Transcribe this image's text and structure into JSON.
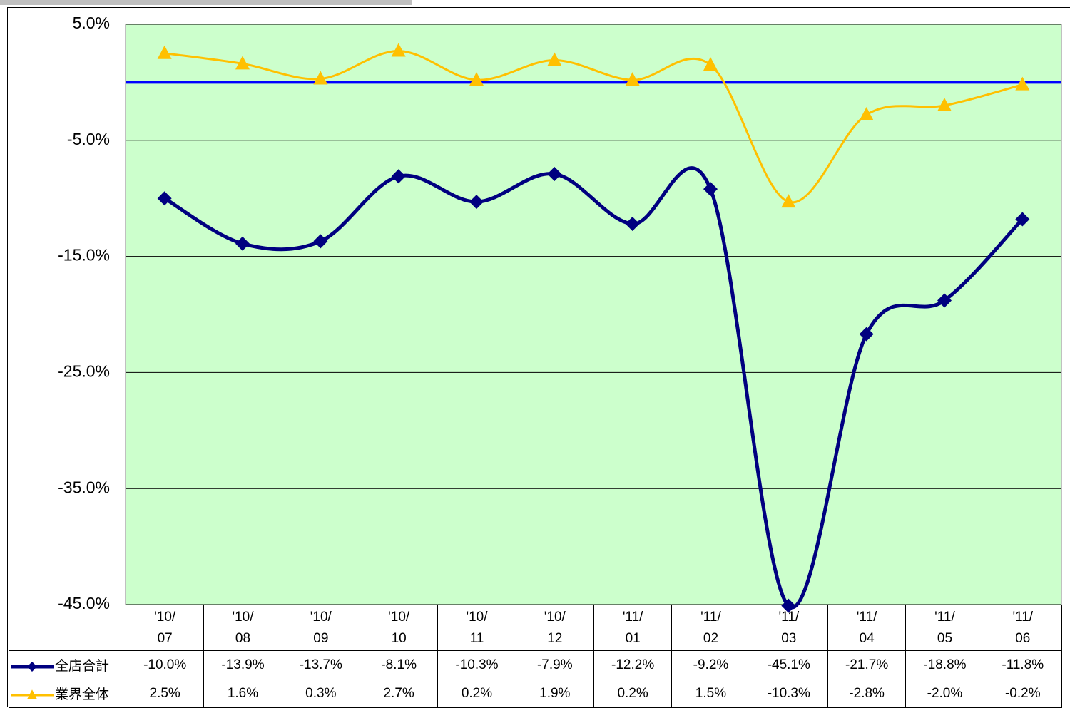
{
  "chart_data": {
    "type": "line",
    "categories": [
      "'10/\n07",
      "'10/\n08",
      "'10/\n09",
      "'10/\n10",
      "'10/\n11",
      "'10/\n12",
      "'11/\n01",
      "'11/\n02",
      "'11/\n03",
      "'11/\n04",
      "'11/\n05",
      "'11/\n06"
    ],
    "series": [
      {
        "name": "全店合計",
        "color": "#000080",
        "marker": "diamond",
        "values": [
          -10.0,
          -13.9,
          -13.7,
          -8.1,
          -10.3,
          -7.9,
          -12.2,
          -9.2,
          -45.1,
          -21.7,
          -18.8,
          -11.8
        ],
        "value_labels": [
          "-10.0%",
          "-13.9%",
          "-13.7%",
          "-8.1%",
          "-10.3%",
          "-7.9%",
          "-12.2%",
          "-9.2%",
          "-45.1%",
          "-21.7%",
          "-18.8%",
          "-11.8%"
        ]
      },
      {
        "name": "業界全体",
        "color": "#FFC000",
        "marker": "triangle",
        "values": [
          2.5,
          1.6,
          0.3,
          2.7,
          0.2,
          1.9,
          0.2,
          1.5,
          -10.3,
          -2.8,
          -2.0,
          -0.2
        ],
        "value_labels": [
          "2.5%",
          "1.6%",
          "0.3%",
          "2.7%",
          "0.2%",
          "1.9%",
          "0.2%",
          "1.5%",
          "-10.3%",
          "-2.8%",
          "-2.0%",
          "-0.2%"
        ]
      }
    ],
    "ylim": [
      -45,
      5
    ],
    "yticks": [
      {
        "value": 5,
        "label": "5.0%"
      },
      {
        "value": -5,
        "label": "-5.0%"
      },
      {
        "value": -15,
        "label": "-15.0%"
      },
      {
        "value": -25,
        "label": "-25.0%"
      },
      {
        "value": -35,
        "label": "-35.0%"
      },
      {
        "value": -45,
        "label": "-45.0%"
      }
    ],
    "baseline": 0,
    "baseline_color": "#0000FF",
    "grid": true,
    "plot_background": "#CCFFCC",
    "smooth": true,
    "data_table": true
  }
}
